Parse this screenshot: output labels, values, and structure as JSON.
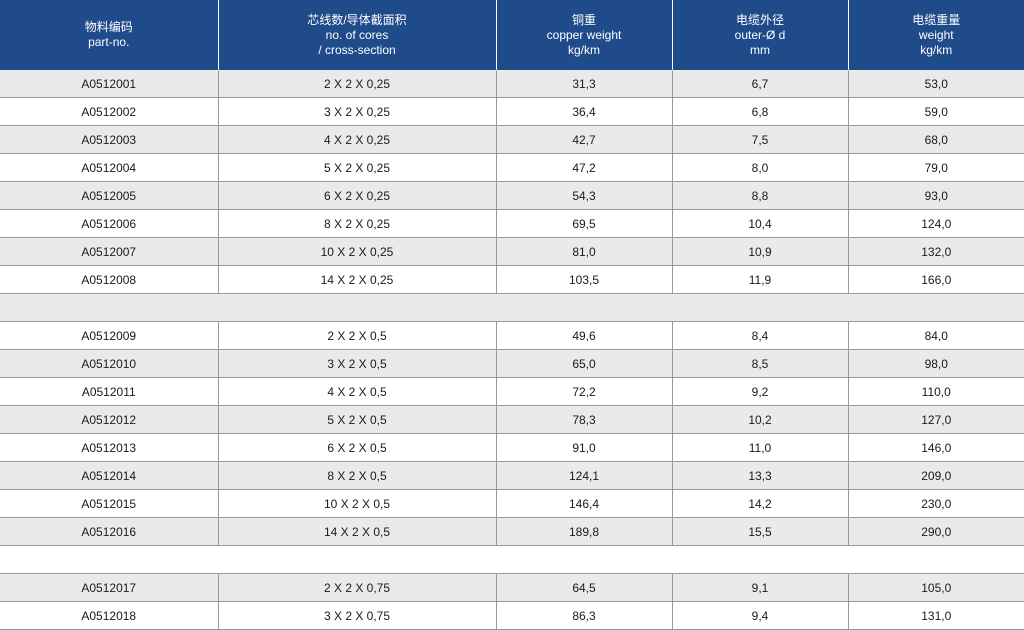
{
  "headers": [
    {
      "cn": "物料编码",
      "en1": "part-no.",
      "en2": ""
    },
    {
      "cn": "芯线数/导体截面积",
      "en1": "no. of cores",
      "en2": "/ cross-section"
    },
    {
      "cn": "铜重",
      "en1": "copper  weight",
      "en2": "kg/km"
    },
    {
      "cn": "电缆外径",
      "en1": "outer-Ø  d",
      "en2": "mm"
    },
    {
      "cn": "电缆重量",
      "en1": "weight",
      "en2": "kg/km"
    }
  ],
  "rows": [
    [
      "A0512001",
      "2 X 2 X 0,25",
      "31,3",
      "6,7",
      "53,0"
    ],
    [
      "A0512002",
      "3 X 2 X 0,25",
      "36,4",
      "6,8",
      "59,0"
    ],
    [
      "A0512003",
      "4 X 2 X 0,25",
      "42,7",
      "7,5",
      "68,0"
    ],
    [
      "A0512004",
      "5 X 2 X 0,25",
      "47,2",
      "8,0",
      "79,0"
    ],
    [
      "A0512005",
      "6 X 2 X 0,25",
      "54,3",
      "8,8",
      "93,0"
    ],
    [
      "A0512006",
      "8 X 2 X 0,25",
      "69,5",
      "10,4",
      "124,0"
    ],
    [
      "A0512007",
      "10 X 2 X 0,25",
      "81,0",
      "10,9",
      "132,0"
    ],
    [
      "A0512008",
      "14 X 2 X 0,25",
      "103,5",
      "11,9",
      "166,0"
    ],
    [
      "",
      "",
      "",
      "",
      ""
    ],
    [
      "A0512009",
      "2 X 2 X 0,5",
      "49,6",
      "8,4",
      "84,0"
    ],
    [
      "A0512010",
      "3 X 2 X 0,5",
      "65,0",
      "8,5",
      "98,0"
    ],
    [
      "A0512011",
      "4 X 2 X 0,5",
      "72,2",
      "9,2",
      "110,0"
    ],
    [
      "A0512012",
      "5 X 2 X 0,5",
      "78,3",
      "10,2",
      "127,0"
    ],
    [
      "A0512013",
      "6 X 2 X 0,5",
      "91,0",
      "11,0",
      "146,0"
    ],
    [
      "A0512014",
      "8 X 2 X 0,5",
      "124,1",
      "13,3",
      "209,0"
    ],
    [
      "A0512015",
      "10 X 2 X 0,5",
      "146,4",
      "14,2",
      "230,0"
    ],
    [
      "A0512016",
      "14 X 2 X 0,5",
      "189,8",
      "15,5",
      "290,0"
    ],
    [
      "",
      "",
      "",
      "",
      ""
    ],
    [
      "A0512017",
      "2 X 2 X 0,75",
      "64,5",
      "9,1",
      "105,0"
    ],
    [
      "A0512018",
      "3 X 2 X 0,75",
      "86,3",
      "9,4",
      "131,0"
    ]
  ]
}
